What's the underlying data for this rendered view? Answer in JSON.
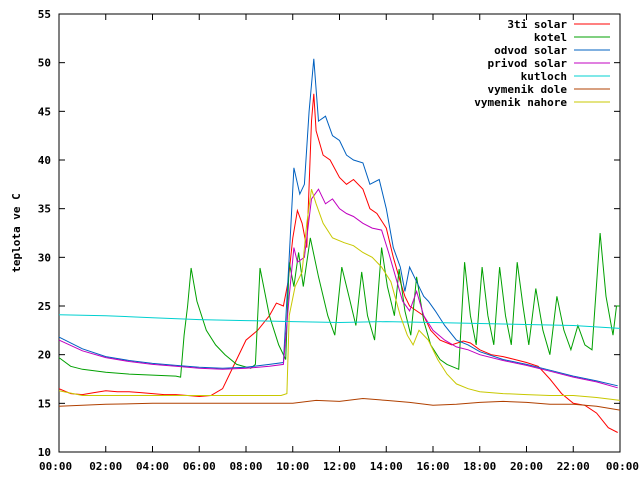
{
  "chart_data": {
    "type": "line",
    "ylabel": "teplota ve C",
    "xlabel": "",
    "title": "",
    "xlim": [
      0,
      24
    ],
    "ylim": [
      10,
      55
    ],
    "grid": false,
    "legend_position": "top-right",
    "x_ticks": [
      "00:00",
      "02:00",
      "04:00",
      "06:00",
      "08:00",
      "10:00",
      "12:00",
      "14:00",
      "16:00",
      "18:00",
      "20:00",
      "22:00",
      "00:00"
    ],
    "y_ticks": [
      10,
      15,
      20,
      25,
      30,
      35,
      40,
      45,
      50,
      55
    ],
    "series": [
      {
        "name": "3ti solar",
        "color": "#ff0000",
        "points": [
          [
            0,
            16.5
          ],
          [
            0.5,
            16.0
          ],
          [
            1,
            15.9
          ],
          [
            1.5,
            16.1
          ],
          [
            2,
            16.3
          ],
          [
            2.5,
            16.2
          ],
          [
            3,
            16.2
          ],
          [
            3.5,
            16.1
          ],
          [
            4,
            16.0
          ],
          [
            4.5,
            15.9
          ],
          [
            5,
            15.9
          ],
          [
            5.5,
            15.8
          ],
          [
            6,
            15.7
          ],
          [
            6.5,
            15.8
          ],
          [
            7,
            16.5
          ],
          [
            7.5,
            19.0
          ],
          [
            8,
            21.5
          ],
          [
            8.5,
            22.5
          ],
          [
            9,
            24.0
          ],
          [
            9.3,
            25.3
          ],
          [
            9.6,
            25.0
          ],
          [
            9.8,
            27.5
          ],
          [
            10,
            32.0
          ],
          [
            10.2,
            34.8
          ],
          [
            10.4,
            33.5
          ],
          [
            10.6,
            31.0
          ],
          [
            10.8,
            44.0
          ],
          [
            10.9,
            46.8
          ],
          [
            11,
            43.0
          ],
          [
            11.3,
            40.5
          ],
          [
            11.6,
            40.0
          ],
          [
            12,
            38.2
          ],
          [
            12.3,
            37.5
          ],
          [
            12.6,
            38.0
          ],
          [
            13,
            37.0
          ],
          [
            13.3,
            35.0
          ],
          [
            13.6,
            34.5
          ],
          [
            14,
            33.0
          ],
          [
            14.3,
            30.0
          ],
          [
            14.6,
            27.5
          ],
          [
            14.8,
            26.0
          ],
          [
            15,
            25.0
          ],
          [
            15.3,
            24.5
          ],
          [
            15.6,
            24.0
          ],
          [
            15.9,
            22.5
          ],
          [
            16.3,
            21.5
          ],
          [
            16.8,
            21.0
          ],
          [
            17.3,
            21.4
          ],
          [
            17.6,
            21.2
          ],
          [
            18,
            20.5
          ],
          [
            18.5,
            20.0
          ],
          [
            19,
            19.8
          ],
          [
            19.5,
            19.5
          ],
          [
            20,
            19.2
          ],
          [
            20.5,
            18.8
          ],
          [
            21,
            17.5
          ],
          [
            21.5,
            16.0
          ],
          [
            22,
            15.0
          ],
          [
            22.5,
            14.8
          ],
          [
            23,
            14.0
          ],
          [
            23.5,
            12.5
          ],
          [
            23.9,
            12.0
          ]
        ]
      },
      {
        "name": "kotel",
        "color": "#00a000",
        "points": [
          [
            0,
            19.7
          ],
          [
            0.5,
            18.8
          ],
          [
            1,
            18.5
          ],
          [
            2,
            18.2
          ],
          [
            3,
            18.0
          ],
          [
            4,
            17.9
          ],
          [
            5,
            17.8
          ],
          [
            5.2,
            17.7
          ],
          [
            5.35,
            22.0
          ],
          [
            5.5,
            25.0
          ],
          [
            5.65,
            28.9
          ],
          [
            5.9,
            25.5
          ],
          [
            6.3,
            22.5
          ],
          [
            6.7,
            21.0
          ],
          [
            7.1,
            20.0
          ],
          [
            7.6,
            19.0
          ],
          [
            8.2,
            18.6
          ],
          [
            8.4,
            19.0
          ],
          [
            8.6,
            28.9
          ],
          [
            9.0,
            24.0
          ],
          [
            9.4,
            21.0
          ],
          [
            9.7,
            19.5
          ],
          [
            9.85,
            29.5
          ],
          [
            10.05,
            27.0
          ],
          [
            10.25,
            30.5
          ],
          [
            10.45,
            27.0
          ],
          [
            10.75,
            32.0
          ],
          [
            11.1,
            28.0
          ],
          [
            11.5,
            24.0
          ],
          [
            11.8,
            22.0
          ],
          [
            12.1,
            29.0
          ],
          [
            12.4,
            26.0
          ],
          [
            12.7,
            23.0
          ],
          [
            12.95,
            28.5
          ],
          [
            13.2,
            24.0
          ],
          [
            13.5,
            21.5
          ],
          [
            13.8,
            31.0
          ],
          [
            14.05,
            27.0
          ],
          [
            14.35,
            24.0
          ],
          [
            14.55,
            28.8
          ],
          [
            14.8,
            24.5
          ],
          [
            15.05,
            22.0
          ],
          [
            15.3,
            28.0
          ],
          [
            15.6,
            23.5
          ],
          [
            15.9,
            21.0
          ],
          [
            16.3,
            19.5
          ],
          [
            16.6,
            19.0
          ],
          [
            17.1,
            18.5
          ],
          [
            17.35,
            29.5
          ],
          [
            17.6,
            24.0
          ],
          [
            17.85,
            21.0
          ],
          [
            18.1,
            29.0
          ],
          [
            18.35,
            24.0
          ],
          [
            18.6,
            21.0
          ],
          [
            18.85,
            29.0
          ],
          [
            19.1,
            24.0
          ],
          [
            19.35,
            21.0
          ],
          [
            19.6,
            29.5
          ],
          [
            19.85,
            25.0
          ],
          [
            20.1,
            21.0
          ],
          [
            20.4,
            26.8
          ],
          [
            20.7,
            22.5
          ],
          [
            21.0,
            20.0
          ],
          [
            21.3,
            26.0
          ],
          [
            21.6,
            22.5
          ],
          [
            21.9,
            20.5
          ],
          [
            22.2,
            23.0
          ],
          [
            22.5,
            21.0
          ],
          [
            22.8,
            20.5
          ],
          [
            23.15,
            32.5
          ],
          [
            23.4,
            26.0
          ],
          [
            23.7,
            22.0
          ],
          [
            23.85,
            25.0
          ],
          [
            24.0,
            25.0
          ]
        ]
      },
      {
        "name": "odvod solar",
        "color": "#0060c0",
        "points": [
          [
            0,
            21.8
          ],
          [
            1,
            20.6
          ],
          [
            2,
            19.8
          ],
          [
            3,
            19.4
          ],
          [
            4,
            19.1
          ],
          [
            5,
            18.9
          ],
          [
            6,
            18.7
          ],
          [
            7,
            18.6
          ],
          [
            8,
            18.7
          ],
          [
            9,
            19.0
          ],
          [
            9.6,
            19.2
          ],
          [
            9.85,
            30.0
          ],
          [
            10.05,
            39.2
          ],
          [
            10.3,
            36.5
          ],
          [
            10.5,
            37.5
          ],
          [
            10.7,
            45.0
          ],
          [
            10.9,
            50.4
          ],
          [
            11.1,
            44.0
          ],
          [
            11.4,
            44.5
          ],
          [
            11.7,
            42.5
          ],
          [
            12,
            42.0
          ],
          [
            12.3,
            40.5
          ],
          [
            12.6,
            40.0
          ],
          [
            13,
            39.7
          ],
          [
            13.3,
            37.5
          ],
          [
            13.7,
            38.0
          ],
          [
            14,
            35.0
          ],
          [
            14.3,
            31.0
          ],
          [
            14.6,
            29.0
          ],
          [
            14.8,
            26.5
          ],
          [
            15,
            29.0
          ],
          [
            15.3,
            27.5
          ],
          [
            15.6,
            26.0
          ],
          [
            15.8,
            25.5
          ],
          [
            16.1,
            24.5
          ],
          [
            16.5,
            23.0
          ],
          [
            17,
            21.5
          ],
          [
            17.5,
            21.0
          ],
          [
            18,
            20.3
          ],
          [
            19,
            19.5
          ],
          [
            20,
            19.0
          ],
          [
            21,
            18.4
          ],
          [
            22,
            17.8
          ],
          [
            23,
            17.3
          ],
          [
            23.9,
            16.8
          ]
        ]
      },
      {
        "name": "privod solar",
        "color": "#c000c0",
        "points": [
          [
            0,
            21.5
          ],
          [
            1,
            20.4
          ],
          [
            2,
            19.7
          ],
          [
            3,
            19.3
          ],
          [
            4,
            19.0
          ],
          [
            5,
            18.8
          ],
          [
            6,
            18.6
          ],
          [
            7,
            18.5
          ],
          [
            8,
            18.6
          ],
          [
            9,
            18.8
          ],
          [
            9.6,
            19.0
          ],
          [
            9.85,
            26.0
          ],
          [
            10.05,
            31.0
          ],
          [
            10.2,
            29.5
          ],
          [
            10.5,
            30.0
          ],
          [
            10.8,
            36.0
          ],
          [
            11.1,
            37.0
          ],
          [
            11.4,
            35.5
          ],
          [
            11.7,
            36.0
          ],
          [
            12,
            35.0
          ],
          [
            12.3,
            34.5
          ],
          [
            12.6,
            34.2
          ],
          [
            13,
            33.5
          ],
          [
            13.4,
            33.0
          ],
          [
            13.8,
            32.8
          ],
          [
            14.1,
            30.5
          ],
          [
            14.4,
            28.0
          ],
          [
            14.7,
            25.5
          ],
          [
            15,
            24.5
          ],
          [
            15.3,
            26.5
          ],
          [
            15.6,
            24.0
          ],
          [
            16,
            22.5
          ],
          [
            16.5,
            21.5
          ],
          [
            17,
            20.8
          ],
          [
            17.5,
            20.5
          ],
          [
            18,
            20.0
          ],
          [
            19,
            19.4
          ],
          [
            20,
            18.9
          ],
          [
            21,
            18.3
          ],
          [
            22,
            17.7
          ],
          [
            23,
            17.2
          ],
          [
            23.9,
            16.6
          ]
        ]
      },
      {
        "name": "kutloch",
        "color": "#00d0d0",
        "points": [
          [
            0,
            24.1
          ],
          [
            2,
            24.0
          ],
          [
            4,
            23.8
          ],
          [
            6,
            23.6
          ],
          [
            8,
            23.5
          ],
          [
            10,
            23.4
          ],
          [
            12,
            23.3
          ],
          [
            14,
            23.4
          ],
          [
            16,
            23.3
          ],
          [
            18,
            23.2
          ],
          [
            20,
            23.1
          ],
          [
            22,
            23.0
          ],
          [
            24,
            22.7
          ]
        ]
      },
      {
        "name": "vymenik dole",
        "color": "#b04000",
        "points": [
          [
            0,
            14.7
          ],
          [
            2,
            14.9
          ],
          [
            4,
            15.0
          ],
          [
            6,
            15.0
          ],
          [
            8,
            15.0
          ],
          [
            10,
            15.0
          ],
          [
            11,
            15.3
          ],
          [
            12,
            15.2
          ],
          [
            13,
            15.5
          ],
          [
            14,
            15.3
          ],
          [
            15,
            15.1
          ],
          [
            16,
            14.8
          ],
          [
            17,
            14.9
          ],
          [
            18,
            15.1
          ],
          [
            19,
            15.2
          ],
          [
            20,
            15.1
          ],
          [
            21,
            14.9
          ],
          [
            22,
            14.9
          ],
          [
            23,
            14.7
          ],
          [
            24,
            14.3
          ]
        ]
      },
      {
        "name": "vymenik nahore",
        "color": "#c8c800",
        "points": [
          [
            0,
            16.3
          ],
          [
            1,
            15.8
          ],
          [
            2,
            15.8
          ],
          [
            4,
            15.8
          ],
          [
            6,
            15.8
          ],
          [
            8,
            15.8
          ],
          [
            9.5,
            15.8
          ],
          [
            9.75,
            16.0
          ],
          [
            9.85,
            24.0
          ],
          [
            10.1,
            27.0
          ],
          [
            10.4,
            28.5
          ],
          [
            10.6,
            33.5
          ],
          [
            10.8,
            37.0
          ],
          [
            11.0,
            35.5
          ],
          [
            11.3,
            33.5
          ],
          [
            11.7,
            32.0
          ],
          [
            12.2,
            31.5
          ],
          [
            12.6,
            31.2
          ],
          [
            13,
            30.5
          ],
          [
            13.4,
            30.0
          ],
          [
            13.8,
            29.0
          ],
          [
            14.2,
            27.5
          ],
          [
            14.6,
            24.0
          ],
          [
            14.9,
            22.0
          ],
          [
            15.15,
            21.0
          ],
          [
            15.4,
            22.5
          ],
          [
            15.8,
            21.5
          ],
          [
            16.2,
            19.5
          ],
          [
            16.6,
            18.0
          ],
          [
            17,
            17.0
          ],
          [
            17.5,
            16.5
          ],
          [
            18,
            16.2
          ],
          [
            19,
            16.0
          ],
          [
            20,
            15.9
          ],
          [
            21,
            15.8
          ],
          [
            22,
            15.8
          ],
          [
            23,
            15.6
          ],
          [
            24,
            15.3
          ]
        ]
      }
    ]
  }
}
